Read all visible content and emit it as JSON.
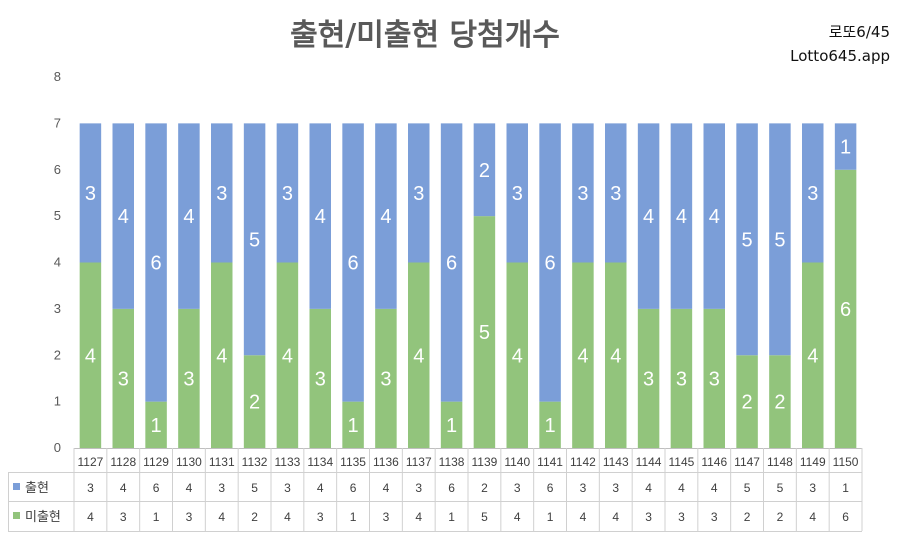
{
  "chart_data": {
    "type": "bar",
    "stacked": true,
    "title": "출현/미출현 당첨개수",
    "brand": [
      "로또6/45",
      "Lotto645.app"
    ],
    "categories": [
      "1127",
      "1128",
      "1129",
      "1130",
      "1131",
      "1132",
      "1133",
      "1134",
      "1135",
      "1136",
      "1137",
      "1138",
      "1139",
      "1140",
      "1141",
      "1142",
      "1143",
      "1144",
      "1145",
      "1146",
      "1147",
      "1148",
      "1149",
      "1150"
    ],
    "series": [
      {
        "name": "미출현",
        "color": "#92c47c",
        "values": [
          4,
          3,
          1,
          3,
          4,
          2,
          4,
          3,
          1,
          3,
          4,
          1,
          5,
          4,
          1,
          4,
          4,
          3,
          3,
          3,
          2,
          2,
          4,
          6
        ]
      },
      {
        "name": "출현",
        "color": "#7b9ed8",
        "values": [
          3,
          4,
          6,
          4,
          3,
          5,
          3,
          4,
          6,
          4,
          3,
          6,
          2,
          3,
          6,
          3,
          3,
          4,
          4,
          4,
          5,
          5,
          3,
          1
        ]
      }
    ],
    "table_rows": [
      "출현",
      "미출현"
    ],
    "ylim": [
      0,
      8
    ],
    "yticks": [
      0,
      1,
      2,
      3,
      4,
      5,
      6,
      7,
      8
    ],
    "grid": false,
    "data_labels": true
  }
}
